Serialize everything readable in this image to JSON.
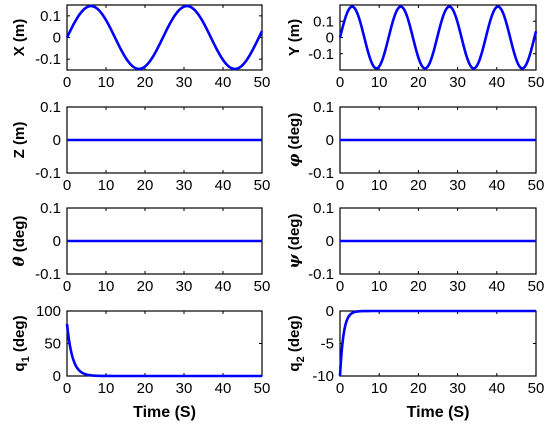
{
  "figure": {
    "xlabel": "Time (S)"
  },
  "chart_data": [
    {
      "type": "line",
      "id": "X",
      "ylabel": "X (m)",
      "xlim": [
        0,
        50
      ],
      "ylim": [
        -0.15,
        0.15
      ],
      "xticks": [
        "0",
        "10",
        "20",
        "30",
        "40",
        "50"
      ],
      "yticks": [
        "0.1",
        "0",
        "-0.1"
      ],
      "ytick_values": [
        0.1,
        0,
        -0.1
      ],
      "series": [
        {
          "kind": "sine",
          "amplitude": 0.145,
          "period": 24.6,
          "phase": 0,
          "color": "#0000ff"
        }
      ]
    },
    {
      "type": "line",
      "id": "Y",
      "ylabel": "Y (m)",
      "xlim": [
        0,
        50
      ],
      "ylim": [
        -0.2,
        0.2
      ],
      "xticks": [
        "0",
        "10",
        "20",
        "30",
        "40",
        "50"
      ],
      "yticks": [
        "0.1",
        "0",
        "-0.1"
      ],
      "ytick_values": [
        0.1,
        0,
        -0.1
      ],
      "series": [
        {
          "kind": "sine",
          "amplitude": 0.19,
          "period": 12.4,
          "phase": 0,
          "color": "#0000ff"
        }
      ]
    },
    {
      "type": "line",
      "id": "Z",
      "ylabel": "Z (m)",
      "xlim": [
        0,
        50
      ],
      "ylim": [
        -0.1,
        0.1
      ],
      "xticks": [
        "0",
        "10",
        "20",
        "30",
        "40",
        "50"
      ],
      "yticks": [
        "0.1",
        "0",
        "-0.1"
      ],
      "ytick_values": [
        0.1,
        0,
        -0.1
      ],
      "series": [
        {
          "kind": "constant",
          "value": 0,
          "color": "#0000ff"
        }
      ]
    },
    {
      "type": "line",
      "id": "phi",
      "ylabel_symbol": "φ",
      "ylabel_unit": " (deg)",
      "xlim": [
        0,
        50
      ],
      "ylim": [
        -0.1,
        0.1
      ],
      "xticks": [
        "0",
        "10",
        "20",
        "30",
        "40",
        "50"
      ],
      "yticks": [
        "0.1",
        "0",
        "-0.1"
      ],
      "ytick_values": [
        0.1,
        0,
        -0.1
      ],
      "series": [
        {
          "kind": "constant",
          "value": 0,
          "color": "#0000ff"
        }
      ]
    },
    {
      "type": "line",
      "id": "theta",
      "ylabel_symbol": "θ",
      "ylabel_unit": " (deg)",
      "xlim": [
        0,
        50
      ],
      "ylim": [
        -0.1,
        0.1
      ],
      "xticks": [
        "0",
        "10",
        "20",
        "30",
        "40",
        "50"
      ],
      "yticks": [
        "0.1",
        "0",
        "-0.1"
      ],
      "ytick_values": [
        0.1,
        0,
        -0.1
      ],
      "series": [
        {
          "kind": "constant",
          "value": 0,
          "color": "#0000ff"
        }
      ]
    },
    {
      "type": "line",
      "id": "psi",
      "ylabel_symbol": "ψ",
      "ylabel_unit": " (deg)",
      "xlim": [
        0,
        50
      ],
      "ylim": [
        -0.1,
        0.1
      ],
      "xticks": [
        "0",
        "10",
        "20",
        "30",
        "40",
        "50"
      ],
      "yticks": [
        "0.1",
        "0",
        "-0.1"
      ],
      "ytick_values": [
        0.1,
        0,
        -0.1
      ],
      "series": [
        {
          "kind": "constant",
          "value": 0,
          "color": "#0000ff"
        }
      ]
    },
    {
      "type": "line",
      "id": "q1",
      "ylabel_main": "q",
      "ylabel_sub": "1",
      "ylabel_unit": " (deg)",
      "xlim": [
        0,
        50
      ],
      "ylim": [
        0,
        100
      ],
      "xticks": [
        "0",
        "10",
        "20",
        "30",
        "40",
        "50"
      ],
      "yticks": [
        "100",
        "50",
        "0"
      ],
      "ytick_values": [
        100,
        50,
        0
      ],
      "xlabel": "Time (S)",
      "series": [
        {
          "kind": "decay",
          "initial": 80,
          "final": 0,
          "tau": 1.4,
          "color": "#0000ff"
        }
      ]
    },
    {
      "type": "line",
      "id": "q2",
      "ylabel_main": "q",
      "ylabel_sub": "2",
      "ylabel_unit": " (deg)",
      "xlim": [
        0,
        50
      ],
      "ylim": [
        -10,
        0
      ],
      "xticks": [
        "0",
        "10",
        "20",
        "30",
        "40",
        "50"
      ],
      "yticks": [
        "0",
        "-5",
        "-10"
      ],
      "ytick_values": [
        0,
        -5,
        -10
      ],
      "xlabel": "Time (S)",
      "series": [
        {
          "kind": "decay",
          "initial": -10,
          "final": 0,
          "tau": 0.9,
          "color": "#0000ff"
        }
      ]
    }
  ]
}
